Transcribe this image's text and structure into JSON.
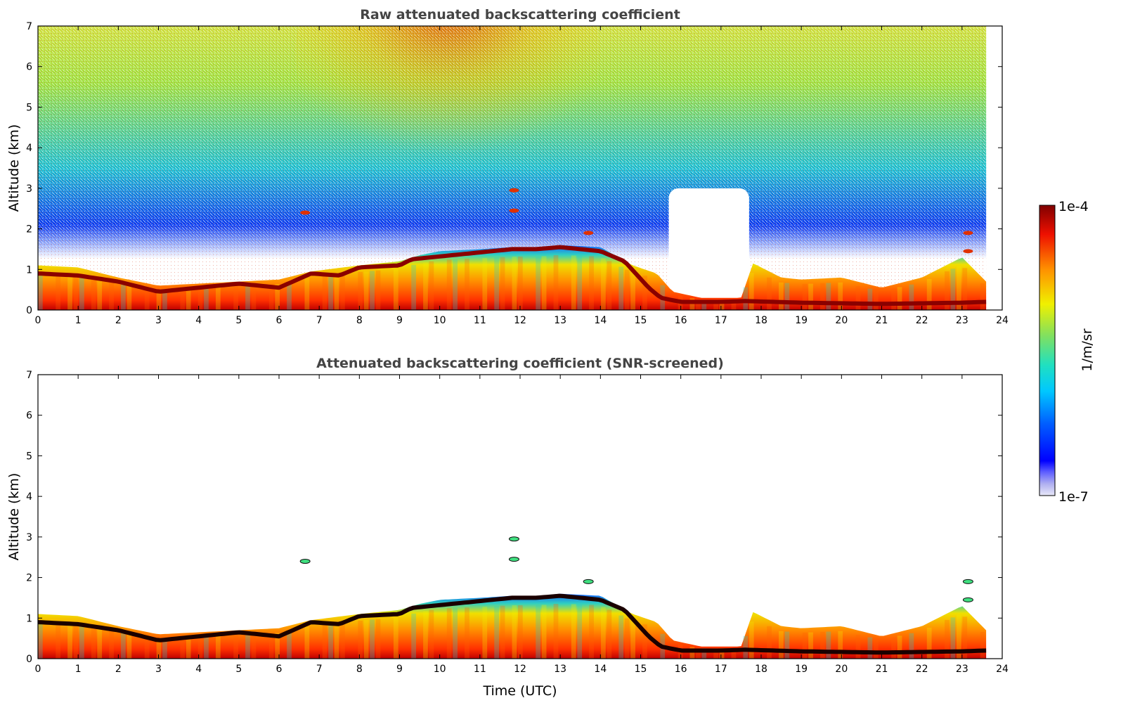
{
  "chart_data": [
    {
      "type": "heatmap",
      "title": "Raw attenuated backscattering coefficient",
      "xlabel": "",
      "ylabel": "Altitude (km)",
      "xlim": [
        0,
        24
      ],
      "ylim": [
        0,
        7
      ],
      "x_ticks": [
        0,
        1,
        2,
        3,
        4,
        5,
        6,
        7,
        8,
        9,
        10,
        11,
        12,
        13,
        14,
        15,
        16,
        17,
        18,
        19,
        20,
        21,
        22,
        23,
        24
      ],
      "y_ticks": [
        0,
        1,
        2,
        3,
        4,
        5,
        6,
        7
      ],
      "data_end_time": 23.6,
      "boundary_layer_top_km": [
        [
          0,
          1.1
        ],
        [
          1,
          1.05
        ],
        [
          2,
          0.8
        ],
        [
          3,
          0.6
        ],
        [
          4,
          0.65
        ],
        [
          5,
          0.7
        ],
        [
          6,
          0.75
        ],
        [
          6.8,
          0.95
        ],
        [
          8,
          1.1
        ],
        [
          9,
          1.2
        ],
        [
          9.5,
          1.35
        ],
        [
          10,
          1.45
        ],
        [
          11,
          1.5
        ],
        [
          11.8,
          1.55
        ],
        [
          12.5,
          1.55
        ],
        [
          13,
          1.6
        ],
        [
          14,
          1.55
        ],
        [
          14.8,
          1.1
        ],
        [
          15.4,
          0.9
        ],
        [
          15.8,
          0.45
        ],
        [
          16.5,
          0.3
        ],
        [
          17.5,
          0.3
        ],
        [
          17.8,
          1.15
        ],
        [
          18.5,
          0.8
        ],
        [
          19,
          0.75
        ],
        [
          20,
          0.8
        ],
        [
          21,
          0.55
        ],
        [
          22,
          0.8
        ],
        [
          23,
          1.3
        ],
        [
          23.6,
          0.7
        ]
      ],
      "elevated_layer_km": [
        [
          0,
          0.9
        ],
        [
          1,
          0.85
        ],
        [
          2,
          0.7
        ],
        [
          3,
          0.45
        ],
        [
          4,
          0.55
        ],
        [
          5,
          0.65
        ],
        [
          6,
          0.55
        ],
        [
          6.8,
          0.9
        ],
        [
          7.5,
          0.85
        ],
        [
          8,
          1.05
        ],
        [
          9,
          1.1
        ],
        [
          9.3,
          1.25
        ],
        [
          11.8,
          1.5
        ],
        [
          12.4,
          1.5
        ],
        [
          13,
          1.55
        ],
        [
          14,
          1.45
        ],
        [
          14.6,
          1.2
        ],
        [
          15.2,
          0.55
        ],
        [
          15.5,
          0.3
        ],
        [
          16,
          0.2
        ],
        [
          17,
          0.2
        ],
        [
          17.6,
          0.22
        ],
        [
          19,
          0.18
        ],
        [
          21,
          0.15
        ],
        [
          23,
          0.18
        ],
        [
          23.6,
          0.2
        ]
      ],
      "clouds_km": [
        {
          "time": 6.65,
          "altitude": 2.4
        },
        {
          "time": 11.85,
          "altitude": 2.95
        },
        {
          "time": 11.85,
          "altitude": 2.45
        },
        {
          "time": 13.7,
          "altitude": 1.9
        },
        {
          "time": 23.15,
          "altitude": 1.9
        },
        {
          "time": 23.15,
          "altitude": 1.45
        }
      ],
      "noise_field": "high above 2 km, strongest 8–13 UTC near 6–7 km",
      "clear_region": {
        "time_start": 15.7,
        "time_end": 17.7,
        "altitude_max": 3.0
      }
    },
    {
      "type": "heatmap",
      "title": "Attenuated backscattering coefficient (SNR-screened)",
      "xlabel": "Time (UTC)",
      "ylabel": "Altitude (km)",
      "xlim": [
        0,
        24
      ],
      "ylim": [
        0,
        7
      ],
      "x_ticks": [
        0,
        1,
        2,
        3,
        4,
        5,
        6,
        7,
        8,
        9,
        10,
        11,
        12,
        13,
        14,
        15,
        16,
        17,
        18,
        19,
        20,
        21,
        22,
        23,
        24
      ],
      "y_ticks": [
        0,
        1,
        2,
        3,
        4,
        5,
        6,
        7
      ],
      "note": "same boundary layer and cloud structures as raw panel, noise removed, saturated cores shown in black"
    }
  ],
  "colorbar": {
    "label": "1/m/sr",
    "min_label": "1e-7",
    "max_label": "1e-4",
    "colormap": "jet"
  }
}
